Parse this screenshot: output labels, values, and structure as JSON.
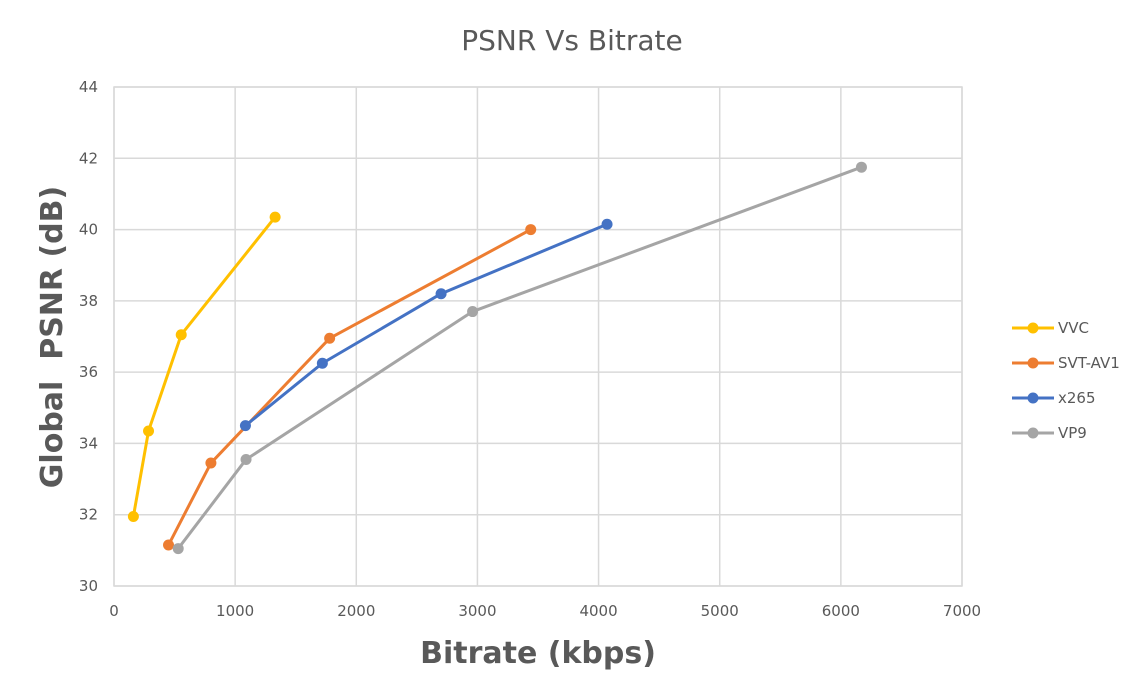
{
  "chart_data": {
    "type": "scatter",
    "title": "PSNR Vs Bitrate",
    "xlabel": "Bitrate (kbps)",
    "ylabel": "Global  PSNR (dB)",
    "xlim": [
      0,
      7000
    ],
    "ylim": [
      30,
      44
    ],
    "xticks": [
      0,
      1000,
      2000,
      3000,
      4000,
      5000,
      6000,
      7000
    ],
    "yticks": [
      30,
      32,
      34,
      36,
      38,
      40,
      42,
      44
    ],
    "grid": true,
    "legend_position": "right",
    "series": [
      {
        "name": "VVC",
        "color": "#FFC000",
        "x": [
          160,
          285,
          555,
          1330
        ],
        "y": [
          31.95,
          34.35,
          37.05,
          40.35
        ]
      },
      {
        "name": "SVT-AV1",
        "color": "#ED7D31",
        "x": [
          450,
          800,
          1780,
          3440
        ],
        "y": [
          31.15,
          33.45,
          36.95,
          40.0
        ]
      },
      {
        "name": "x265",
        "color": "#4472C4",
        "x": [
          1085,
          1720,
          2700,
          4070
        ],
        "y": [
          34.5,
          36.25,
          38.2,
          40.15
        ]
      },
      {
        "name": "VP9",
        "color": "#A5A5A5",
        "x": [
          530,
          1090,
          2960,
          6170
        ],
        "y": [
          31.05,
          33.55,
          37.7,
          41.75
        ]
      }
    ]
  }
}
